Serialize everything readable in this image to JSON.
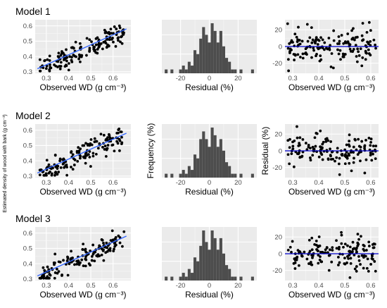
{
  "figure": {
    "shared_ylabel": "Estimated density of wood with bark (g cm⁻³)"
  },
  "chart_data": [
    {
      "type": "scatter",
      "row": 1,
      "column": "observed",
      "title": "Model 1",
      "xlabel": "Observed WD (g cm⁻³)",
      "ylabel": "",
      "xlim": [
        0.25,
        0.68
      ],
      "ylim": [
        0.29,
        0.64
      ],
      "xticks": [
        "0.3",
        "0.4",
        "0.5",
        "0.6"
      ],
      "yticks": [
        "0.3",
        "0.4",
        "0.5",
        "0.6"
      ],
      "grid": true,
      "fit_line": {
        "x": [
          0.26,
          0.66
        ],
        "y": [
          0.32,
          0.58
        ],
        "color": "#3366FF"
      },
      "n_points": 150,
      "point_color": "#000000"
    },
    {
      "type": "bar",
      "row": 1,
      "column": "histogram",
      "title": "",
      "xlabel": "Residual (%)",
      "ylabel": "",
      "xlim": [
        -33,
        33
      ],
      "xticks": [
        "-20",
        "0",
        "20"
      ],
      "bin_width": 2,
      "bin_centers": [
        -30,
        -28,
        -26,
        -24,
        -22,
        -20,
        -18,
        -16,
        -14,
        -12,
        -10,
        -8,
        -6,
        -4,
        -2,
        0,
        2,
        4,
        6,
        8,
        10,
        12,
        14,
        16,
        18,
        20,
        22,
        24,
        26,
        28,
        30
      ],
      "values": [
        1,
        0,
        1,
        0,
        0,
        1,
        2,
        1,
        3,
        2,
        6,
        5,
        9,
        12,
        10,
        8,
        13,
        11,
        8,
        11,
        7,
        4,
        3,
        1,
        1,
        0,
        1,
        0,
        0,
        0,
        1
      ],
      "color": "#4d4d4d",
      "grid": true
    },
    {
      "type": "scatter",
      "row": 1,
      "column": "residual",
      "title": "",
      "xlabel": "Observed WD (g cm⁻³)",
      "ylabel": "",
      "xlim": [
        0.27,
        0.63
      ],
      "ylim": [
        -32,
        32
      ],
      "xticks": [
        "0.3",
        "0.4",
        "0.5",
        "0.6"
      ],
      "yticks": [
        "-20",
        "0",
        "20"
      ],
      "grid": true,
      "hline": {
        "y": 0,
        "color": "#0000CC"
      },
      "n_points": 150,
      "point_color": "#000000"
    },
    {
      "type": "scatter",
      "row": 2,
      "column": "observed",
      "title": "Model 2",
      "xlabel": "Observed WD (g cm⁻³)",
      "ylabel": "",
      "xlim": [
        0.25,
        0.68
      ],
      "ylim": [
        0.29,
        0.64
      ],
      "xticks": [
        "0.3",
        "0.4",
        "0.5",
        "0.6"
      ],
      "yticks": [
        "0.3",
        "0.4",
        "0.5",
        "0.6"
      ],
      "grid": true,
      "fit_line": {
        "x": [
          0.26,
          0.66
        ],
        "y": [
          0.32,
          0.58
        ],
        "color": "#3366FF"
      },
      "n_points": 150,
      "point_color": "#000000"
    },
    {
      "type": "bar",
      "row": 2,
      "column": "histogram",
      "title": "",
      "xlabel": "Residual (%)",
      "ylabel": "Frequency (%)",
      "xlim": [
        -33,
        33
      ],
      "xticks": [
        "-20",
        "0",
        "20"
      ],
      "bin_width": 2,
      "bin_centers": [
        -30,
        -28,
        -26,
        -24,
        -22,
        -20,
        -18,
        -16,
        -14,
        -12,
        -10,
        -8,
        -6,
        -4,
        -2,
        0,
        2,
        4,
        6,
        8,
        10,
        12,
        14,
        16,
        18,
        20,
        22,
        24,
        26,
        28,
        30
      ],
      "values": [
        1,
        0,
        1,
        0,
        0,
        1,
        2,
        1,
        3,
        2,
        6,
        5,
        10,
        12,
        10,
        8,
        13,
        11,
        8,
        10,
        7,
        4,
        3,
        1,
        1,
        0,
        1,
        0,
        0,
        0,
        1
      ],
      "color": "#4d4d4d",
      "grid": true
    },
    {
      "type": "scatter",
      "row": 2,
      "column": "residual",
      "title": "",
      "xlabel": "Observed WD (g cm⁻³)",
      "ylabel": "Residual (%)",
      "xlim": [
        0.27,
        0.63
      ],
      "ylim": [
        -32,
        32
      ],
      "xticks": [
        "0.3",
        "0.4",
        "0.5",
        "0.6"
      ],
      "yticks": [
        "-20",
        "0",
        "20"
      ],
      "grid": true,
      "hline": {
        "y": 0,
        "color": "#0000CC"
      },
      "n_points": 150,
      "point_color": "#000000"
    },
    {
      "type": "scatter",
      "row": 3,
      "column": "observed",
      "title": "Model 3",
      "xlabel": "Observed WD (g cm⁻³)",
      "ylabel": "",
      "xlim": [
        0.25,
        0.68
      ],
      "ylim": [
        0.29,
        0.64
      ],
      "xticks": [
        "0.3",
        "0.4",
        "0.5",
        "0.6"
      ],
      "yticks": [
        "0.3",
        "0.4",
        "0.5",
        "0.6"
      ],
      "grid": true,
      "fit_line": {
        "x": [
          0.26,
          0.66
        ],
        "y": [
          0.32,
          0.58
        ],
        "color": "#3366FF"
      },
      "n_points": 150,
      "point_color": "#000000"
    },
    {
      "type": "bar",
      "row": 3,
      "column": "histogram",
      "title": "",
      "xlabel": "Residual (%)",
      "ylabel": "",
      "xlim": [
        -33,
        33
      ],
      "xticks": [
        "-20",
        "0",
        "20"
      ],
      "bin_width": 2,
      "bin_centers": [
        -30,
        -28,
        -26,
        -24,
        -22,
        -20,
        -18,
        -16,
        -14,
        -12,
        -10,
        -8,
        -6,
        -4,
        -2,
        0,
        2,
        4,
        6,
        8,
        10,
        12,
        14,
        16,
        18,
        20,
        22,
        24,
        26,
        28,
        30
      ],
      "values": [
        1,
        0,
        1,
        0,
        0,
        1,
        2,
        1,
        3,
        2,
        6,
        5,
        9,
        13,
        10,
        8,
        13,
        11,
        8,
        11,
        7,
        4,
        3,
        1,
        1,
        0,
        1,
        0,
        0,
        0,
        1
      ],
      "color": "#4d4d4d",
      "grid": true
    },
    {
      "type": "scatter",
      "row": 3,
      "column": "residual",
      "title": "",
      "xlabel": "Observed WD (g cm⁻³)",
      "ylabel": "",
      "xlim": [
        0.27,
        0.63
      ],
      "ylim": [
        -32,
        32
      ],
      "xticks": [
        "0.3",
        "0.4",
        "0.5",
        "0.6"
      ],
      "yticks": [
        "-20",
        "0",
        "20"
      ],
      "grid": true,
      "hline": {
        "y": 0,
        "color": "#0000CC"
      },
      "n_points": 150,
      "point_color": "#000000"
    }
  ]
}
